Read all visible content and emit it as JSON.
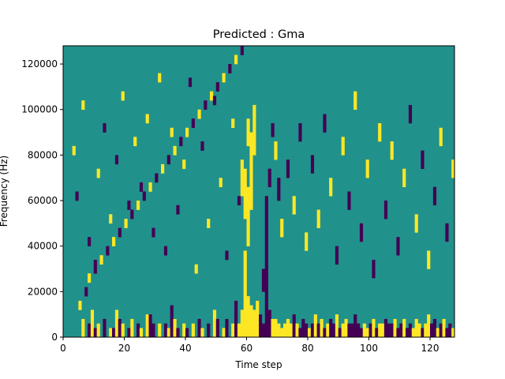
{
  "chart_data": {
    "type": "heatmap",
    "title": "Predicted : Gma",
    "xlabel": "Time step",
    "ylabel": "Frequency (Hz)",
    "xlim": [
      0,
      128
    ],
    "ylim": [
      0,
      128000
    ],
    "x_ticks": [
      0,
      20,
      40,
      60,
      80,
      100,
      120
    ],
    "x_tick_labels": [
      "0",
      "20",
      "40",
      "60",
      "80",
      "100",
      "120"
    ],
    "y_ticks": [
      0,
      20000,
      40000,
      60000,
      80000,
      100000,
      120000
    ],
    "y_tick_labels": [
      "0",
      "20000",
      "40000",
      "60000",
      "80000",
      "100000",
      "120000"
    ],
    "n_time_steps": 128,
    "n_freq_bins": 64,
    "colormap": "viridis",
    "value_levels": [
      0,
      0.5,
      1
    ],
    "colors": {
      "low": "#440154",
      "mid": "#21918c",
      "high": "#fde725"
    },
    "background_value": 0.5,
    "cell_value_format": "[time_step, frequency_bin_start, frequency_bin_end, value]",
    "cells": [
      [
        6,
        0,
        3,
        1
      ],
      [
        8,
        0,
        2,
        0
      ],
      [
        9,
        0,
        5,
        1
      ],
      [
        10,
        0,
        1,
        0
      ],
      [
        11,
        0,
        2,
        1
      ],
      [
        13,
        0,
        3,
        0
      ],
      [
        15,
        0,
        1,
        1
      ],
      [
        16,
        0,
        1,
        0
      ],
      [
        17,
        0,
        5,
        1
      ],
      [
        18,
        0,
        3,
        0
      ],
      [
        19,
        0,
        2,
        1
      ],
      [
        21,
        0,
        1,
        0
      ],
      [
        22,
        0,
        3,
        1
      ],
      [
        24,
        0,
        2,
        0
      ],
      [
        25,
        0,
        1,
        1
      ],
      [
        27,
        0,
        4,
        1
      ],
      [
        28,
        0,
        4,
        0
      ],
      [
        29,
        0,
        2,
        0
      ],
      [
        31,
        0,
        2,
        1
      ],
      [
        33,
        0,
        2,
        0
      ],
      [
        34,
        0,
        1,
        1
      ],
      [
        35,
        0,
        6,
        0
      ],
      [
        36,
        0,
        3,
        1
      ],
      [
        37,
        0,
        1,
        0
      ],
      [
        39,
        0,
        2,
        1
      ],
      [
        40,
        0,
        1,
        0
      ],
      [
        42,
        0,
        2,
        1
      ],
      [
        44,
        0,
        3,
        0
      ],
      [
        45,
        0,
        1,
        1
      ],
      [
        47,
        0,
        2,
        0
      ],
      [
        49,
        0,
        5,
        1
      ],
      [
        50,
        0,
        3,
        0
      ],
      [
        52,
        0,
        1,
        1
      ],
      [
        53,
        0,
        3,
        0
      ],
      [
        55,
        0,
        2,
        1
      ],
      [
        56,
        0,
        7,
        0
      ],
      [
        57,
        0,
        2,
        1
      ],
      [
        58,
        0,
        5,
        1
      ],
      [
        59,
        0,
        14,
        1
      ],
      [
        60,
        0,
        8,
        1
      ],
      [
        61,
        0,
        6,
        1
      ],
      [
        62,
        0,
        5,
        1
      ],
      [
        63,
        0,
        7,
        1
      ],
      [
        64,
        0,
        4,
        0
      ],
      [
        65,
        0,
        2,
        0
      ],
      [
        66,
        0,
        25,
        0
      ],
      [
        67,
        0,
        5,
        0
      ],
      [
        68,
        0,
        3,
        1
      ],
      [
        69,
        0,
        3,
        1
      ],
      [
        70,
        0,
        2,
        1
      ],
      [
        71,
        0,
        1,
        1
      ],
      [
        72,
        0,
        2,
        1
      ],
      [
        73,
        0,
        3,
        1
      ],
      [
        74,
        0,
        2,
        1
      ],
      [
        75,
        0,
        4,
        0
      ],
      [
        76,
        0,
        2,
        1
      ],
      [
        77,
        0,
        1,
        0
      ],
      [
        78,
        0,
        3,
        0
      ],
      [
        79,
        0,
        2,
        0
      ],
      [
        80,
        0,
        1,
        1
      ],
      [
        81,
        0,
        2,
        0
      ],
      [
        82,
        0,
        4,
        1
      ],
      [
        83,
        0,
        2,
        0
      ],
      [
        84,
        0,
        3,
        1
      ],
      [
        85,
        0,
        1,
        0
      ],
      [
        86,
        0,
        2,
        1
      ],
      [
        87,
        0,
        3,
        0
      ],
      [
        88,
        0,
        2,
        0
      ],
      [
        89,
        0,
        4,
        1
      ],
      [
        90,
        0,
        1,
        0
      ],
      [
        91,
        0,
        2,
        1
      ],
      [
        92,
        0,
        3,
        1
      ],
      [
        93,
        0,
        2,
        0
      ],
      [
        94,
        0,
        2,
        0
      ],
      [
        95,
        0,
        4,
        0
      ],
      [
        96,
        0,
        2,
        0
      ],
      [
        97,
        0,
        1,
        0
      ],
      [
        98,
        0,
        2,
        1
      ],
      [
        99,
        0,
        1,
        1
      ],
      [
        100,
        0,
        2,
        0
      ],
      [
        101,
        0,
        3,
        1
      ],
      [
        102,
        0,
        1,
        0
      ],
      [
        103,
        0,
        2,
        1
      ],
      [
        104,
        0,
        2,
        1
      ],
      [
        105,
        0,
        3,
        0
      ],
      [
        106,
        0,
        2,
        0
      ],
      [
        107,
        0,
        2,
        0
      ],
      [
        108,
        0,
        3,
        1
      ],
      [
        109,
        0,
        1,
        0
      ],
      [
        110,
        0,
        2,
        0
      ],
      [
        111,
        0,
        3,
        1
      ],
      [
        112,
        0,
        1,
        0
      ],
      [
        113,
        0,
        2,
        0
      ],
      [
        114,
        0,
        1,
        1
      ],
      [
        115,
        0,
        3,
        1
      ],
      [
        116,
        0,
        2,
        1
      ],
      [
        117,
        0,
        1,
        0
      ],
      [
        118,
        0,
        2,
        1
      ],
      [
        119,
        0,
        4,
        1
      ],
      [
        120,
        0,
        2,
        0
      ],
      [
        121,
        0,
        3,
        0
      ],
      [
        122,
        0,
        1,
        1
      ],
      [
        123,
        0,
        2,
        0
      ],
      [
        124,
        0,
        3,
        1
      ],
      [
        125,
        0,
        1,
        0
      ],
      [
        126,
        0,
        2,
        0
      ],
      [
        127,
        0,
        1,
        1
      ],
      [
        5,
        6,
        7,
        1
      ],
      [
        7,
        9,
        10,
        0
      ],
      [
        8,
        12,
        13,
        1
      ],
      [
        10,
        14,
        16,
        0
      ],
      [
        12,
        16,
        17,
        1
      ],
      [
        14,
        18,
        19,
        0
      ],
      [
        16,
        20,
        21,
        1
      ],
      [
        18,
        22,
        23,
        0
      ],
      [
        20,
        24,
        25,
        1
      ],
      [
        22,
        26,
        27,
        0
      ],
      [
        24,
        28,
        29,
        1
      ],
      [
        26,
        30,
        31,
        0
      ],
      [
        28,
        32,
        33,
        1
      ],
      [
        30,
        34,
        35,
        0
      ],
      [
        32,
        36,
        37,
        1
      ],
      [
        34,
        38,
        39,
        0
      ],
      [
        36,
        40,
        41,
        1
      ],
      [
        38,
        42,
        43,
        0
      ],
      [
        40,
        44,
        45,
        1
      ],
      [
        42,
        46,
        47,
        0
      ],
      [
        44,
        48,
        49,
        1
      ],
      [
        46,
        50,
        51,
        0
      ],
      [
        48,
        52,
        53,
        1
      ],
      [
        50,
        54,
        55,
        0
      ],
      [
        52,
        56,
        57,
        1
      ],
      [
        54,
        58,
        59,
        0
      ],
      [
        56,
        60,
        61,
        1
      ],
      [
        58,
        62,
        63,
        0
      ],
      [
        3,
        40,
        41,
        1
      ],
      [
        4,
        30,
        31,
        0
      ],
      [
        6,
        50,
        51,
        1
      ],
      [
        8,
        20,
        21,
        0
      ],
      [
        11,
        35,
        36,
        1
      ],
      [
        13,
        45,
        46,
        0
      ],
      [
        15,
        25,
        26,
        1
      ],
      [
        17,
        38,
        39,
        0
      ],
      [
        19,
        52,
        53,
        1
      ],
      [
        21,
        28,
        29,
        0
      ],
      [
        23,
        42,
        43,
        1
      ],
      [
        25,
        32,
        33,
        0
      ],
      [
        27,
        47,
        48,
        1
      ],
      [
        29,
        22,
        23,
        0
      ],
      [
        31,
        56,
        57,
        1
      ],
      [
        33,
        18,
        19,
        0
      ],
      [
        35,
        44,
        45,
        1
      ],
      [
        37,
        27,
        28,
        0
      ],
      [
        39,
        37,
        38,
        1
      ],
      [
        41,
        55,
        56,
        0
      ],
      [
        43,
        14,
        15,
        1
      ],
      [
        45,
        41,
        42,
        0
      ],
      [
        47,
        24,
        25,
        1
      ],
      [
        49,
        51,
        52,
        0
      ],
      [
        51,
        33,
        34,
        1
      ],
      [
        53,
        17,
        18,
        0
      ],
      [
        55,
        46,
        47,
        1
      ],
      [
        57,
        29,
        30,
        0
      ],
      [
        59,
        15,
        18,
        1
      ],
      [
        60,
        20,
        32,
        1
      ],
      [
        61,
        28,
        44,
        1
      ],
      [
        62,
        40,
        50,
        1
      ],
      [
        60,
        42,
        47,
        1
      ],
      [
        59,
        26,
        36,
        1
      ],
      [
        58,
        31,
        38,
        1
      ],
      [
        65,
        10,
        14,
        0
      ],
      [
        66,
        26,
        30,
        0
      ],
      [
        67,
        33,
        36,
        0
      ],
      [
        68,
        44,
        46,
        0
      ],
      [
        69,
        39,
        42,
        1
      ],
      [
        70,
        30,
        34,
        0
      ],
      [
        71,
        22,
        25,
        1
      ],
      [
        73,
        35,
        38,
        0
      ],
      [
        75,
        27,
        30,
        1
      ],
      [
        77,
        43,
        46,
        0
      ],
      [
        79,
        19,
        22,
        1
      ],
      [
        81,
        36,
        39,
        0
      ],
      [
        83,
        24,
        27,
        1
      ],
      [
        85,
        45,
        48,
        0
      ],
      [
        87,
        31,
        34,
        1
      ],
      [
        89,
        16,
        19,
        0
      ],
      [
        91,
        40,
        43,
        1
      ],
      [
        93,
        28,
        31,
        0
      ],
      [
        95,
        50,
        53,
        1
      ],
      [
        97,
        21,
        24,
        0
      ],
      [
        99,
        35,
        38,
        1
      ],
      [
        101,
        13,
        16,
        0
      ],
      [
        103,
        43,
        46,
        1
      ],
      [
        105,
        26,
        29,
        0
      ],
      [
        107,
        39,
        42,
        1
      ],
      [
        109,
        18,
        21,
        0
      ],
      [
        111,
        33,
        36,
        1
      ],
      [
        113,
        47,
        50,
        0
      ],
      [
        115,
        23,
        26,
        1
      ],
      [
        117,
        37,
        40,
        0
      ],
      [
        119,
        15,
        18,
        1
      ],
      [
        121,
        29,
        32,
        0
      ],
      [
        123,
        42,
        45,
        1
      ],
      [
        125,
        21,
        24,
        0
      ],
      [
        127,
        35,
        38,
        1
      ]
    ]
  }
}
